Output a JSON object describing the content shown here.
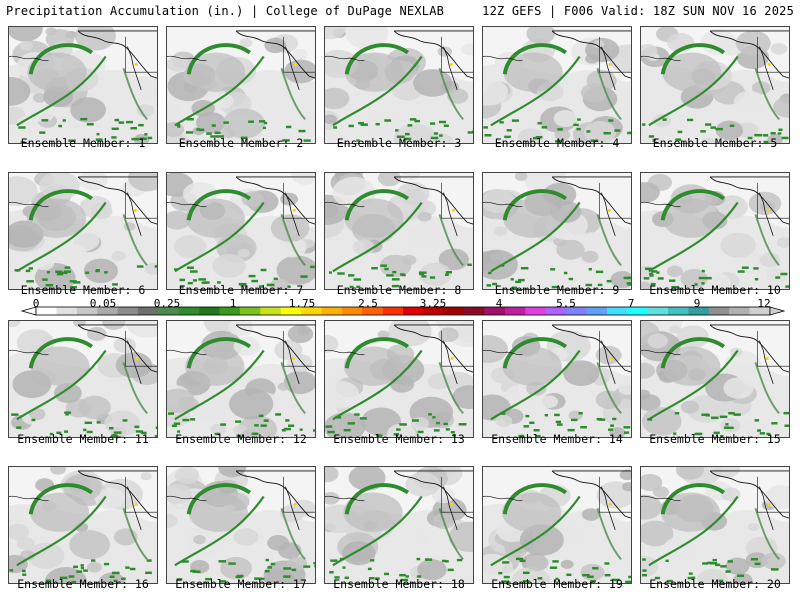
{
  "header": {
    "left": "Precipitation Accumulation (in.) | College of DuPage NEXLAB",
    "right": "12Z GEFS | F006 Valid: 18Z SUN NOV 16 2025"
  },
  "members": [
    {
      "label": "Ensemble Member: 1"
    },
    {
      "label": "Ensemble Member: 2"
    },
    {
      "label": "Ensemble Member: 3"
    },
    {
      "label": "Ensemble Member: 4"
    },
    {
      "label": "Ensemble Member: 5"
    },
    {
      "label": "Ensemble Member: 6"
    },
    {
      "label": "Ensemble Member: 7"
    },
    {
      "label": "Ensemble Member: 8"
    },
    {
      "label": "Ensemble Member: 9"
    },
    {
      "label": "Ensemble Member: 10"
    },
    {
      "label": "Ensemble Member: 11"
    },
    {
      "label": "Ensemble Member: 12"
    },
    {
      "label": "Ensemble Member: 13"
    },
    {
      "label": "Ensemble Member: 14"
    },
    {
      "label": "Ensemble Member: 15"
    },
    {
      "label": "Ensemble Member: 16"
    },
    {
      "label": "Ensemble Member: 17"
    },
    {
      "label": "Ensemble Member: 18"
    },
    {
      "label": "Ensemble Member: 19"
    },
    {
      "label": "Ensemble Member: 20"
    }
  ],
  "colorbar": {
    "tick_labels": [
      "0",
      "0.05",
      "0.25",
      "1",
      "1.75",
      "2.5",
      "3.25",
      "4",
      "5.5",
      "7",
      "9",
      "12"
    ],
    "colors": [
      "#ffffff",
      "#e2e2e2",
      "#c8c8c8",
      "#aaaaaa",
      "#8c8c8c",
      "#6e6e6e",
      "#4d8a4d",
      "#2e8b2e",
      "#1f7a1f",
      "#3a9a1a",
      "#7cc21a",
      "#c8e21a",
      "#ffff00",
      "#ffd700",
      "#ffb000",
      "#ff8c00",
      "#ff6000",
      "#ff3000",
      "#e00000",
      "#c00000",
      "#a00000",
      "#8b0a2a",
      "#a0106a",
      "#c020a0",
      "#e040e0",
      "#b060ff",
      "#8080ff",
      "#60a0ff",
      "#40e0ff",
      "#20ffff",
      "#60e0e0",
      "#40c0c0",
      "#30a0a0",
      "#909090",
      "#b0b0b0",
      "#d0d0d0"
    ]
  }
}
